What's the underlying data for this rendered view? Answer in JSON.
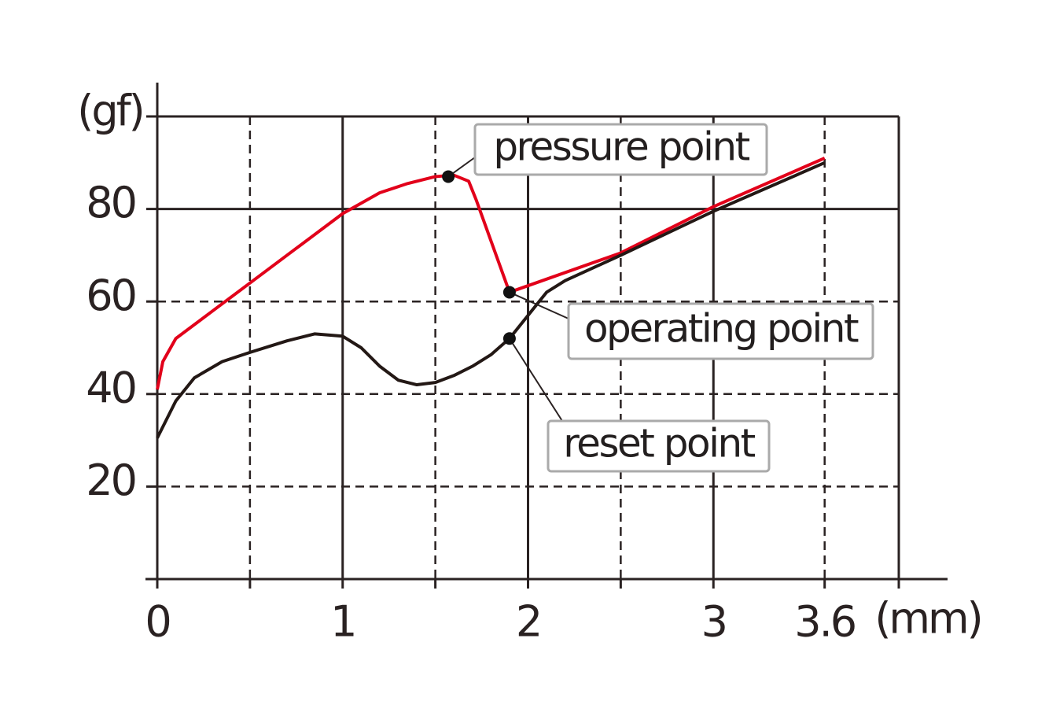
{
  "chart_data": {
    "type": "line",
    "x_label": "(mm)",
    "y_label": "(gf)",
    "xlim": [
      0,
      4
    ],
    "ylim": [
      0,
      100
    ],
    "xticks": [
      0,
      1,
      2,
      3,
      3.6
    ],
    "x_minor_ticks": [
      0.5,
      1.5,
      2.5
    ],
    "yticks": [
      20,
      40,
      60,
      80
    ],
    "grid": true,
    "series": [
      {
        "color": "#e2001a",
        "x": [
          0,
          0.03,
          0.1,
          0.3,
          0.5,
          0.75,
          1,
          1.2,
          1.35,
          1.5,
          1.6,
          1.68,
          1.72,
          1.9,
          2.5,
          3,
          3.6
        ],
        "values": [
          41,
          47,
          52,
          58,
          64,
          71.5,
          79,
          83.5,
          85.5,
          87,
          87.3,
          86,
          82,
          62,
          70.5,
          80.5,
          91
        ]
      },
      {
        "color": "#231815",
        "x": [
          0,
          0.1,
          0.2,
          0.35,
          0.5,
          0.7,
          0.85,
          1,
          1.1,
          1.2,
          1.3,
          1.4,
          1.5,
          1.6,
          1.7,
          1.8,
          1.9,
          2,
          2.1,
          2.2,
          2.5,
          3,
          3.6
        ],
        "values": [
          30.5,
          38.5,
          43.5,
          47,
          49,
          51.5,
          53,
          52.5,
          50,
          46,
          43,
          42,
          42.5,
          44,
          46,
          48.5,
          52,
          57,
          62,
          64.5,
          70,
          79.5,
          90
        ]
      }
    ],
    "annotations": [
      {
        "text": "pressure point",
        "x": 1.57,
        "y": 87
      },
      {
        "text": "operating point",
        "x": 1.9,
        "y": 62
      },
      {
        "text": "reset point",
        "x": 1.9,
        "y": 52
      }
    ]
  }
}
